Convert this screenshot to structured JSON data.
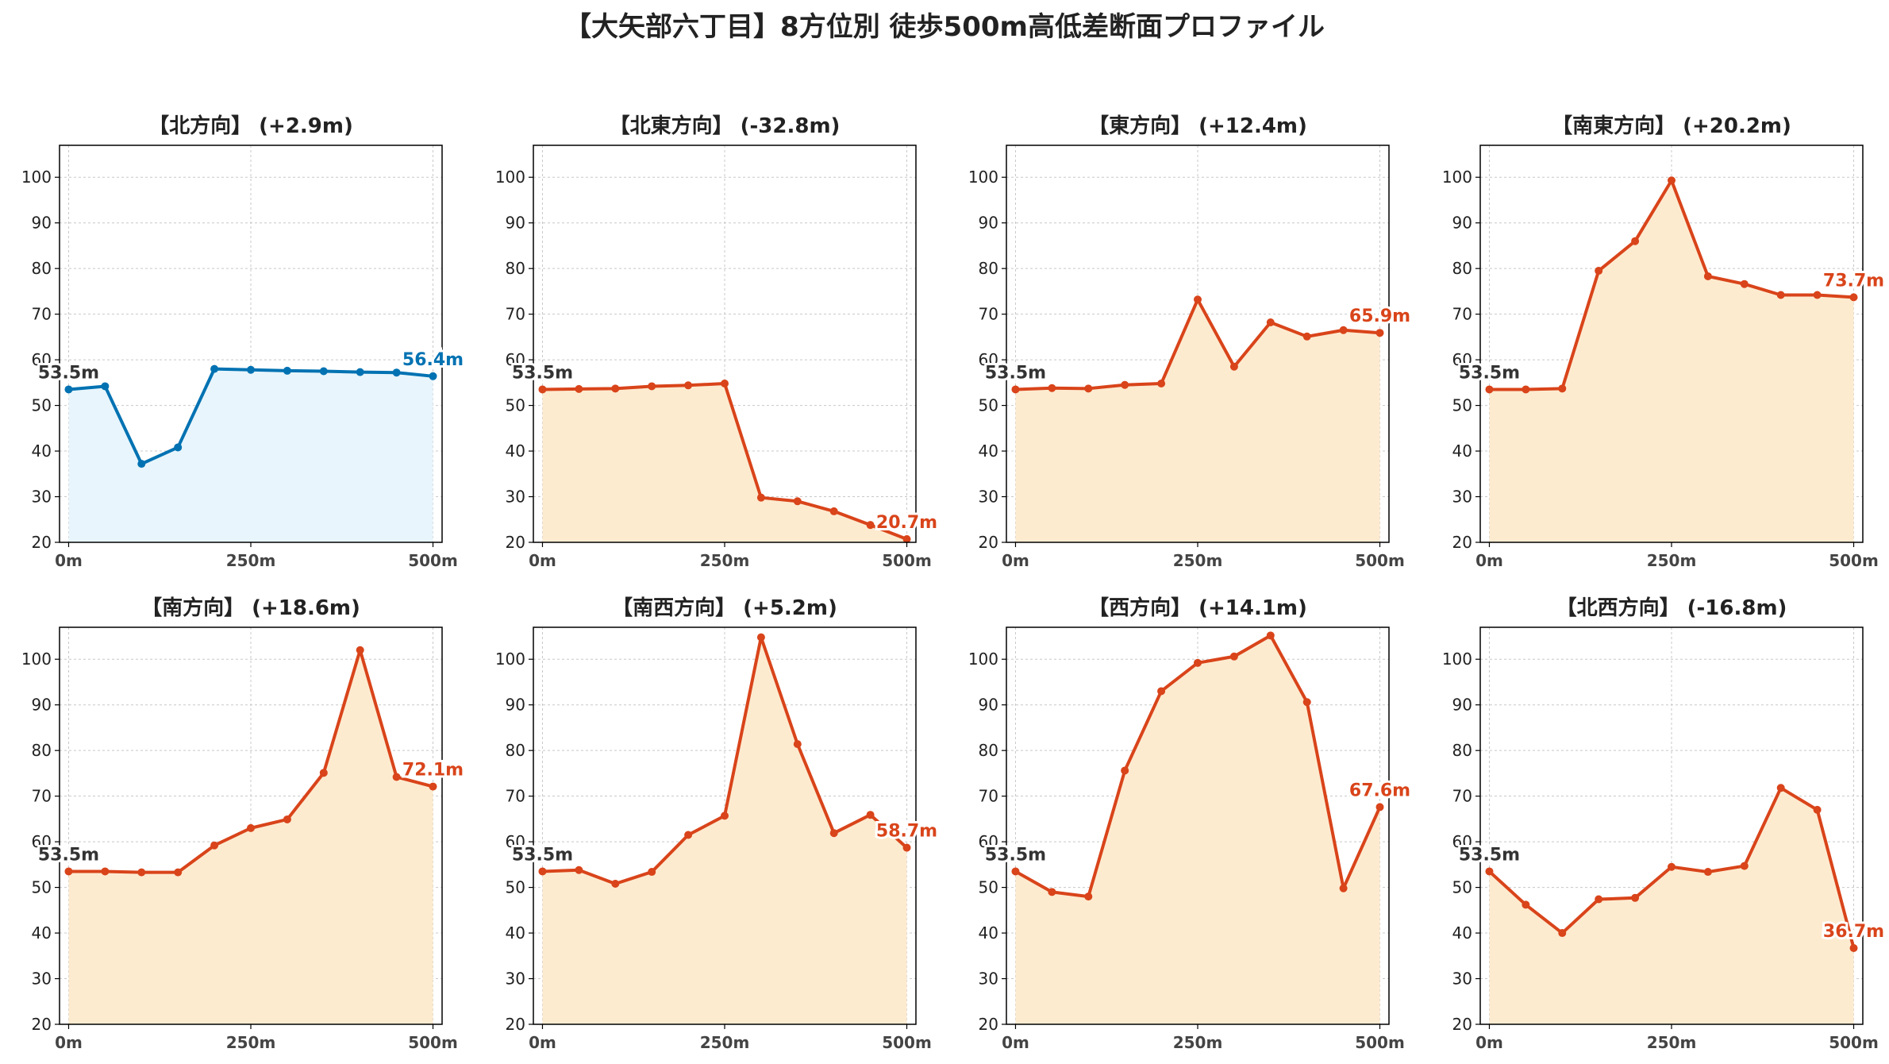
{
  "title": "【大矢部六丁目】8方位別 徒歩500m高低差断面プロファイル",
  "colors": {
    "up_line": "#0072b2",
    "up_fill": "#e8f5fc",
    "down_line": "#d9441a",
    "down_fill": "#fdebd0",
    "start_label": "#333333"
  },
  "chart_data": [
    {
      "type": "area",
      "title": "【北方向】 (+2.9m)",
      "style": "up",
      "x": [
        0,
        50,
        100,
        150,
        200,
        250,
        300,
        350,
        400,
        450,
        500
      ],
      "values": [
        53.5,
        54.2,
        37.2,
        40.8,
        58.0,
        57.8,
        57.6,
        57.5,
        57.3,
        57.2,
        56.4
      ],
      "start_label": "53.5m",
      "end_label": "56.4m",
      "xticks": [
        "0m",
        "250m",
        "500m"
      ],
      "ylim": [
        20,
        107
      ],
      "yticks": [
        20,
        30,
        40,
        50,
        60,
        70,
        80,
        90,
        100
      ],
      "grid": true
    },
    {
      "type": "area",
      "title": "【北東方向】 (-32.8m)",
      "style": "down",
      "x": [
        0,
        50,
        100,
        150,
        200,
        250,
        300,
        350,
        400,
        450,
        500
      ],
      "values": [
        53.5,
        53.6,
        53.7,
        54.2,
        54.4,
        54.8,
        29.8,
        29.0,
        26.8,
        23.8,
        20.7
      ],
      "start_label": "53.5m",
      "end_label": "20.7m",
      "xticks": [
        "0m",
        "250m",
        "500m"
      ],
      "ylim": [
        20,
        107
      ],
      "yticks": [
        20,
        30,
        40,
        50,
        60,
        70,
        80,
        90,
        100
      ],
      "grid": true
    },
    {
      "type": "area",
      "title": "【東方向】 (+12.4m)",
      "style": "down",
      "x": [
        0,
        50,
        100,
        150,
        200,
        250,
        300,
        350,
        400,
        450,
        500
      ],
      "values": [
        53.5,
        53.8,
        53.7,
        54.5,
        54.8,
        73.2,
        58.5,
        68.2,
        65.1,
        66.5,
        65.9
      ],
      "start_label": "53.5m",
      "end_label": "65.9m",
      "xticks": [
        "0m",
        "250m",
        "500m"
      ],
      "ylim": [
        20,
        107
      ],
      "yticks": [
        20,
        30,
        40,
        50,
        60,
        70,
        80,
        90,
        100
      ],
      "grid": true
    },
    {
      "type": "area",
      "title": "【南東方向】 (+20.2m)",
      "style": "down",
      "x": [
        0,
        50,
        100,
        150,
        200,
        250,
        300,
        350,
        400,
        450,
        500
      ],
      "values": [
        53.5,
        53.5,
        53.7,
        79.5,
        86.0,
        99.3,
        78.3,
        76.6,
        74.2,
        74.2,
        73.7
      ],
      "start_label": "53.5m",
      "end_label": "73.7m",
      "xticks": [
        "0m",
        "250m",
        "500m"
      ],
      "ylim": [
        20,
        107
      ],
      "yticks": [
        20,
        30,
        40,
        50,
        60,
        70,
        80,
        90,
        100
      ],
      "grid": true
    },
    {
      "type": "area",
      "title": "【南方向】 (+18.6m)",
      "style": "down",
      "x": [
        0,
        50,
        100,
        150,
        200,
        250,
        300,
        350,
        400,
        450,
        500
      ],
      "values": [
        53.5,
        53.5,
        53.3,
        53.3,
        59.2,
        63.0,
        64.9,
        75.1,
        102.0,
        74.2,
        72.1
      ],
      "start_label": "53.5m",
      "end_label": "72.1m",
      "xticks": [
        "0m",
        "250m",
        "500m"
      ],
      "ylim": [
        20,
        107
      ],
      "yticks": [
        20,
        30,
        40,
        50,
        60,
        70,
        80,
        90,
        100
      ],
      "grid": true
    },
    {
      "type": "area",
      "title": "【南西方向】 (+5.2m)",
      "style": "down",
      "x": [
        0,
        50,
        100,
        150,
        200,
        250,
        300,
        350,
        400,
        450,
        500
      ],
      "values": [
        53.5,
        53.8,
        50.8,
        53.4,
        61.5,
        65.7,
        104.8,
        81.4,
        61.9,
        65.9,
        58.7
      ],
      "start_label": "53.5m",
      "end_label": "58.7m",
      "xticks": [
        "0m",
        "250m",
        "500m"
      ],
      "ylim": [
        20,
        107
      ],
      "yticks": [
        20,
        30,
        40,
        50,
        60,
        70,
        80,
        90,
        100
      ],
      "grid": true
    },
    {
      "type": "area",
      "title": "【西方向】 (+14.1m)",
      "style": "down",
      "x": [
        0,
        50,
        100,
        150,
        200,
        250,
        300,
        350,
        400,
        450,
        500
      ],
      "values": [
        53.5,
        49.0,
        48.0,
        75.6,
        93.0,
        99.2,
        100.6,
        105.2,
        90.6,
        49.8,
        67.6
      ],
      "start_label": "53.5m",
      "end_label": "67.6m",
      "xticks": [
        "0m",
        "250m",
        "500m"
      ],
      "ylim": [
        20,
        107
      ],
      "yticks": [
        20,
        30,
        40,
        50,
        60,
        70,
        80,
        90,
        100
      ],
      "grid": true
    },
    {
      "type": "area",
      "title": "【北西方向】 (-16.8m)",
      "style": "down",
      "x": [
        0,
        50,
        100,
        150,
        200,
        250,
        300,
        350,
        400,
        450,
        500
      ],
      "values": [
        53.5,
        46.2,
        40.0,
        47.4,
        47.7,
        54.5,
        53.4,
        54.7,
        71.8,
        67.0,
        36.7
      ],
      "start_label": "53.5m",
      "end_label": "36.7m",
      "xticks": [
        "0m",
        "250m",
        "500m"
      ],
      "ylim": [
        20,
        107
      ],
      "yticks": [
        20,
        30,
        40,
        50,
        60,
        70,
        80,
        90,
        100
      ],
      "grid": true
    }
  ]
}
